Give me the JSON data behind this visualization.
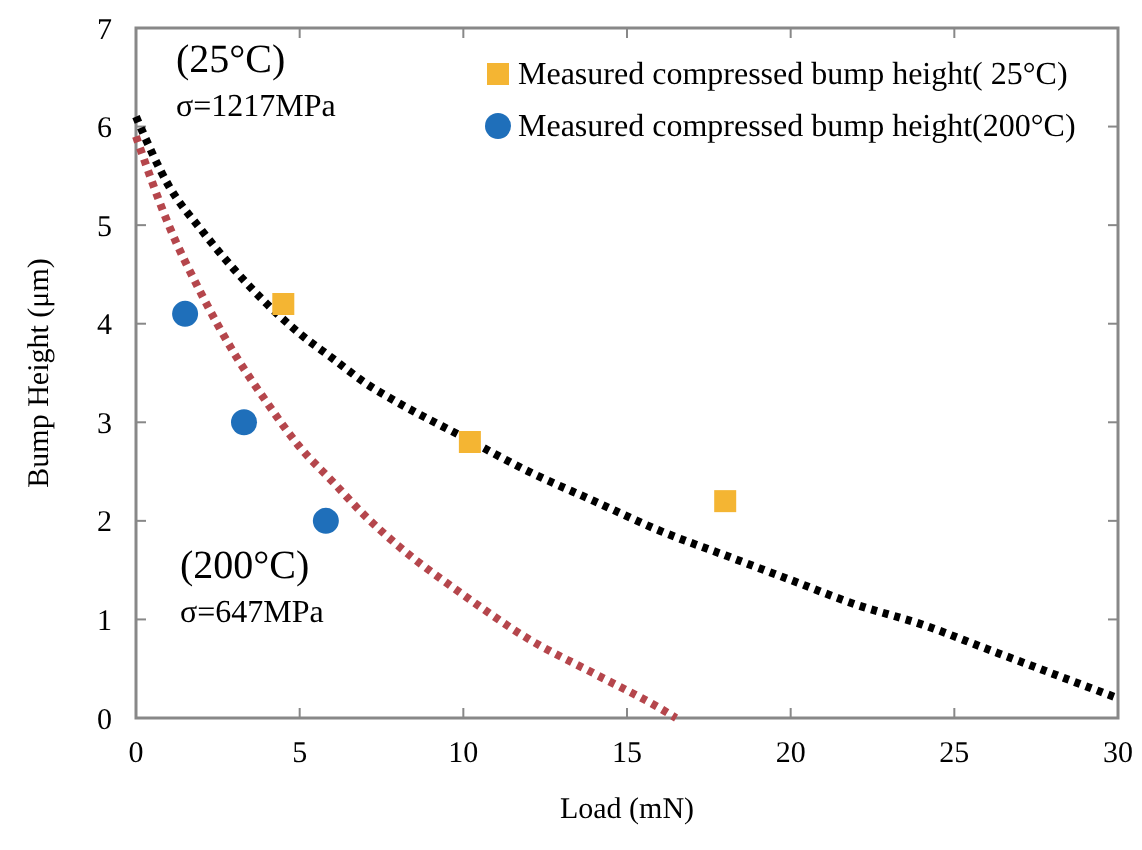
{
  "chart_data": {
    "type": "line",
    "xlabel": "Load (mN)",
    "ylabel": "Bump Height (μm)",
    "xlim": [
      0,
      30
    ],
    "ylim": [
      0,
      7
    ],
    "xticks": [
      0,
      5,
      10,
      15,
      20,
      25,
      30
    ],
    "yticks": [
      0,
      1,
      2,
      3,
      4,
      5,
      6,
      7
    ],
    "grid": false,
    "legend": "top right",
    "annotations": [
      "(25°C)",
      "σ=1217MPa",
      "(200°C)",
      "σ=647MPa"
    ],
    "series": [
      {
        "color": "#000000",
        "line_style": "dotted",
        "marker": "none",
        "x": [
          0,
          1,
          2,
          3,
          4,
          5,
          6,
          7,
          8,
          10,
          12,
          14,
          16,
          18,
          20,
          22,
          24,
          26,
          28,
          30
        ],
        "values": [
          6.1,
          5.4,
          4.95,
          4.55,
          4.2,
          3.9,
          3.65,
          3.4,
          3.2,
          2.85,
          2.5,
          2.2,
          1.9,
          1.65,
          1.4,
          1.15,
          0.95,
          0.7,
          0.45,
          0.2
        ]
      },
      {
        "color": "#b5464c",
        "line_style": "dotted",
        "marker": "none",
        "x": [
          0,
          1,
          2,
          3,
          4,
          5,
          6,
          7,
          8,
          10,
          12,
          14,
          16,
          16.5
        ],
        "values": [
          5.9,
          5.0,
          4.3,
          3.7,
          3.2,
          2.75,
          2.4,
          2.05,
          1.75,
          1.25,
          0.8,
          0.45,
          0.1,
          0
        ]
      },
      {
        "type": "scatter",
        "name": "Measured compressed bump height( 25°C)",
        "color": "#f4b533",
        "marker": "square",
        "x": [
          4.5,
          10.2,
          18
        ],
        "values": [
          4.2,
          2.8,
          2.2
        ]
      },
      {
        "type": "scatter",
        "name": "Measured compressed bump height(200°C)",
        "color": "#1f6fba",
        "marker": "circle",
        "x": [
          1.5,
          3.3,
          5.8
        ],
        "values": [
          4.1,
          3.0,
          2.0
        ]
      }
    ]
  }
}
